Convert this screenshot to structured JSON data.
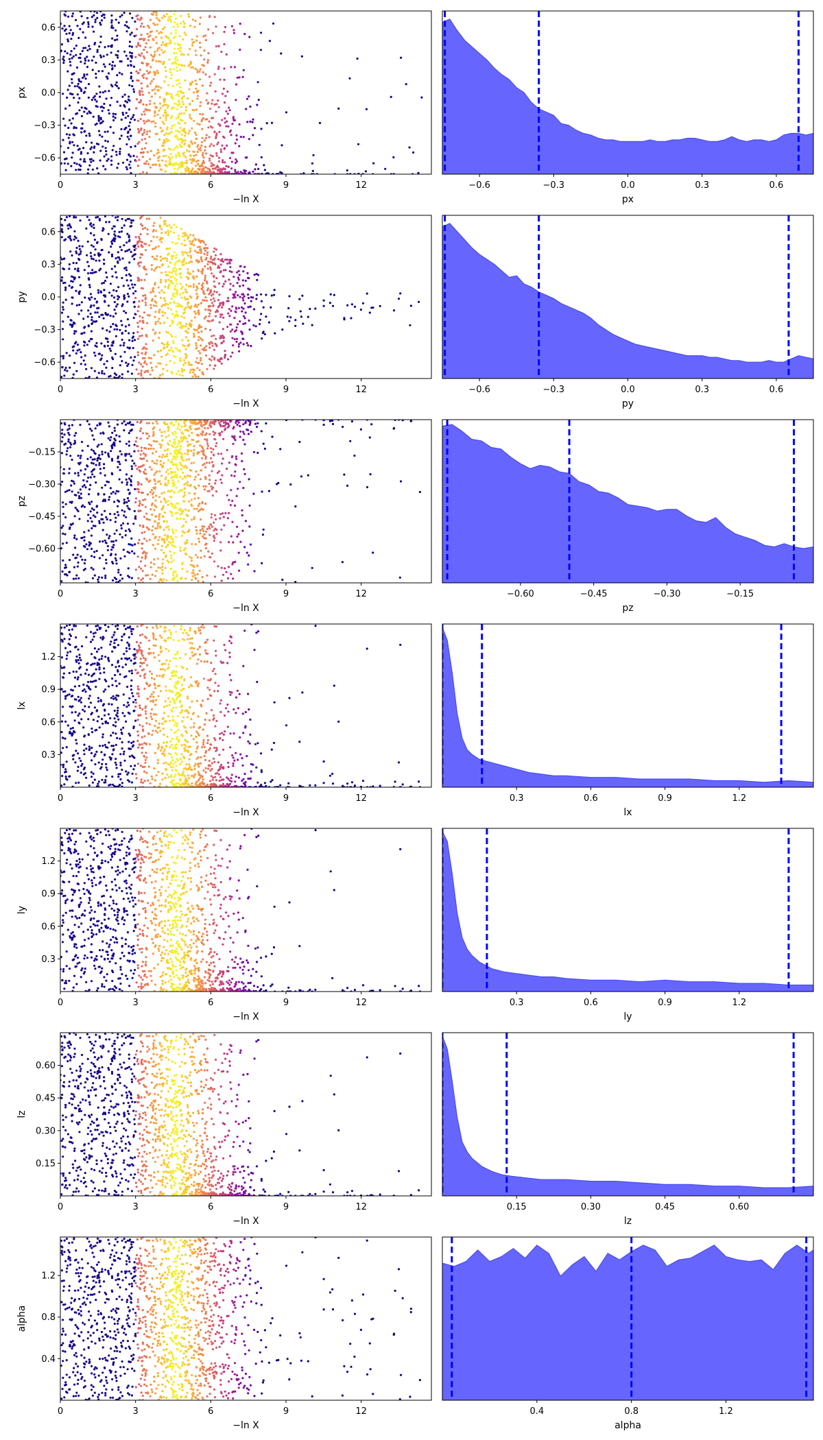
{
  "chart_data": [
    {
      "row": 0,
      "type": "scatter",
      "xlabel": "−ln X",
      "ylabel": "px",
      "xlim": [
        0,
        14.8
      ],
      "ylim": [
        -0.75,
        0.75
      ],
      "xticks": [
        "0",
        "3",
        "6",
        "9",
        "12"
      ],
      "yticks": [
        "0.6",
        "0.3",
        "0.0",
        "−0.3",
        "−0.6"
      ],
      "pattern": "low-tail"
    },
    {
      "row": 0,
      "type": "area",
      "xlabel": "px",
      "xlim": [
        -0.75,
        0.75
      ],
      "xticks": [
        "−0.6",
        "−0.3",
        "0.0",
        "0.3",
        "0.6"
      ],
      "x": [
        -0.75,
        -0.72,
        -0.69,
        -0.66,
        -0.63,
        -0.6,
        -0.57,
        -0.54,
        -0.51,
        -0.48,
        -0.45,
        -0.42,
        -0.39,
        -0.36,
        -0.33,
        -0.3,
        -0.27,
        -0.24,
        -0.21,
        -0.18,
        -0.15,
        -0.12,
        -0.09,
        -0.06,
        -0.03,
        0.0,
        0.03,
        0.06,
        0.09,
        0.12,
        0.15,
        0.18,
        0.21,
        0.24,
        0.27,
        0.3,
        0.33,
        0.36,
        0.39,
        0.42,
        0.45,
        0.48,
        0.51,
        0.54,
        0.57,
        0.6,
        0.63,
        0.66,
        0.69,
        0.72,
        0.75
      ],
      "density": [
        0.93,
        0.95,
        0.88,
        0.82,
        0.78,
        0.74,
        0.7,
        0.65,
        0.61,
        0.58,
        0.53,
        0.5,
        0.44,
        0.4,
        0.38,
        0.36,
        0.31,
        0.3,
        0.27,
        0.25,
        0.24,
        0.22,
        0.21,
        0.21,
        0.2,
        0.2,
        0.2,
        0.2,
        0.21,
        0.2,
        0.2,
        0.21,
        0.21,
        0.22,
        0.22,
        0.21,
        0.2,
        0.2,
        0.21,
        0.23,
        0.21,
        0.2,
        0.21,
        0.21,
        0.2,
        0.21,
        0.24,
        0.25,
        0.25,
        0.24,
        0.25
      ],
      "vlines": [
        -0.74,
        -0.36,
        0.69
      ]
    },
    {
      "row": 1,
      "type": "scatter",
      "xlabel": "−ln X",
      "ylabel": "py",
      "xlim": [
        0,
        14.8
      ],
      "ylim": [
        -0.75,
        0.75
      ],
      "xticks": [
        "0",
        "3",
        "6",
        "9",
        "12"
      ],
      "yticks": [
        "0.6",
        "0.3",
        "0.0",
        "−0.3",
        "−0.6"
      ],
      "pattern": "mid-tail"
    },
    {
      "row": 1,
      "type": "area",
      "xlabel": "py",
      "xlim": [
        -0.75,
        0.75
      ],
      "xticks": [
        "−0.6",
        "−0.3",
        "0.0",
        "0.3",
        "0.6"
      ],
      "x": [
        -0.75,
        -0.72,
        -0.69,
        -0.66,
        -0.63,
        -0.6,
        -0.57,
        -0.54,
        -0.51,
        -0.48,
        -0.45,
        -0.42,
        -0.39,
        -0.36,
        -0.33,
        -0.3,
        -0.27,
        -0.24,
        -0.21,
        -0.18,
        -0.15,
        -0.12,
        -0.09,
        -0.06,
        -0.03,
        0.0,
        0.03,
        0.06,
        0.09,
        0.12,
        0.15,
        0.18,
        0.21,
        0.24,
        0.27,
        0.3,
        0.33,
        0.36,
        0.39,
        0.42,
        0.45,
        0.48,
        0.51,
        0.54,
        0.57,
        0.6,
        0.63,
        0.66,
        0.69,
        0.72,
        0.75
      ],
      "density": [
        0.93,
        0.95,
        0.9,
        0.85,
        0.8,
        0.76,
        0.73,
        0.7,
        0.66,
        0.62,
        0.63,
        0.58,
        0.56,
        0.53,
        0.51,
        0.49,
        0.46,
        0.44,
        0.42,
        0.4,
        0.37,
        0.33,
        0.3,
        0.27,
        0.25,
        0.23,
        0.21,
        0.2,
        0.19,
        0.18,
        0.17,
        0.16,
        0.15,
        0.14,
        0.14,
        0.14,
        0.13,
        0.13,
        0.12,
        0.11,
        0.11,
        0.1,
        0.1,
        0.1,
        0.11,
        0.1,
        0.1,
        0.12,
        0.14,
        0.13,
        0.12
      ],
      "vlines": [
        -0.74,
        -0.36,
        0.65
      ]
    },
    {
      "row": 2,
      "type": "scatter",
      "xlabel": "−ln X",
      "ylabel": "pz",
      "xlim": [
        0,
        14.8
      ],
      "ylim": [
        -0.76,
        0.0
      ],
      "xticks": [
        "0",
        "3",
        "6",
        "9",
        "12"
      ],
      "yticks": [
        "−0.15",
        "−0.30",
        "−0.45",
        "−0.60"
      ],
      "pattern": "high-tail"
    },
    {
      "row": 2,
      "type": "area",
      "xlabel": "pz",
      "xlim": [
        -0.76,
        0.0
      ],
      "xticks": [
        "−0.60",
        "−0.45",
        "−0.30",
        "−0.15"
      ],
      "x": [
        -0.76,
        -0.74,
        -0.72,
        -0.7,
        -0.68,
        -0.66,
        -0.64,
        -0.62,
        -0.6,
        -0.58,
        -0.56,
        -0.54,
        -0.52,
        -0.5,
        -0.48,
        -0.46,
        -0.44,
        -0.42,
        -0.4,
        -0.38,
        -0.36,
        -0.34,
        -0.32,
        -0.3,
        -0.28,
        -0.26,
        -0.24,
        -0.22,
        -0.2,
        -0.18,
        -0.16,
        -0.14,
        -0.12,
        -0.1,
        -0.08,
        -0.06,
        -0.04,
        -0.02,
        0.0
      ],
      "density": [
        0.96,
        0.97,
        0.93,
        0.88,
        0.87,
        0.83,
        0.82,
        0.77,
        0.73,
        0.7,
        0.72,
        0.71,
        0.68,
        0.67,
        0.62,
        0.6,
        0.56,
        0.55,
        0.52,
        0.48,
        0.47,
        0.46,
        0.44,
        0.45,
        0.45,
        0.41,
        0.38,
        0.37,
        0.4,
        0.34,
        0.3,
        0.28,
        0.26,
        0.23,
        0.22,
        0.24,
        0.22,
        0.21,
        0.22
      ],
      "vlines": [
        -0.75,
        -0.5,
        -0.04
      ]
    },
    {
      "row": 3,
      "type": "scatter",
      "xlabel": "−ln X",
      "ylabel": "lx",
      "xlim": [
        0,
        14.8
      ],
      "ylim": [
        0.0,
        1.5
      ],
      "xticks": [
        "0",
        "3",
        "6",
        "9",
        "12"
      ],
      "yticks": [
        "1.2",
        "0.9",
        "0.6",
        "0.3"
      ],
      "pattern": "low-tail"
    },
    {
      "row": 3,
      "type": "area",
      "xlabel": "lx",
      "xlim": [
        0.0,
        1.5
      ],
      "xticks": [
        "0.3",
        "0.6",
        "0.9",
        "1.2"
      ],
      "x": [
        0.0,
        0.02,
        0.04,
        0.06,
        0.08,
        0.1,
        0.12,
        0.15,
        0.2,
        0.25,
        0.3,
        0.35,
        0.4,
        0.45,
        0.5,
        0.6,
        0.7,
        0.8,
        0.9,
        1.0,
        1.1,
        1.2,
        1.3,
        1.4,
        1.5
      ],
      "density": [
        0.98,
        0.9,
        0.7,
        0.45,
        0.3,
        0.23,
        0.2,
        0.17,
        0.15,
        0.13,
        0.11,
        0.09,
        0.08,
        0.07,
        0.07,
        0.06,
        0.06,
        0.05,
        0.05,
        0.05,
        0.04,
        0.04,
        0.03,
        0.04,
        0.03
      ],
      "vlines": [
        0.0,
        0.16,
        1.37
      ]
    },
    {
      "row": 4,
      "type": "scatter",
      "xlabel": "−ln X",
      "ylabel": "ly",
      "xlim": [
        0,
        14.8
      ],
      "ylim": [
        0.0,
        1.5
      ],
      "xticks": [
        "0",
        "3",
        "6",
        "9",
        "12"
      ],
      "yticks": [
        "1.2",
        "0.9",
        "0.6",
        "0.3"
      ],
      "pattern": "low-tail"
    },
    {
      "row": 4,
      "type": "area",
      "xlabel": "ly",
      "xlim": [
        0.0,
        1.5
      ],
      "xticks": [
        "0.3",
        "0.6",
        "0.9",
        "1.2"
      ],
      "x": [
        0.0,
        0.02,
        0.04,
        0.06,
        0.08,
        0.1,
        0.12,
        0.15,
        0.2,
        0.25,
        0.3,
        0.35,
        0.4,
        0.45,
        0.5,
        0.6,
        0.7,
        0.8,
        0.9,
        1.0,
        1.1,
        1.2,
        1.3,
        1.4,
        1.5
      ],
      "density": [
        0.98,
        0.92,
        0.72,
        0.48,
        0.33,
        0.26,
        0.22,
        0.18,
        0.14,
        0.12,
        0.11,
        0.1,
        0.09,
        0.09,
        0.08,
        0.07,
        0.07,
        0.06,
        0.07,
        0.06,
        0.06,
        0.05,
        0.05,
        0.04,
        0.04
      ],
      "vlines": [
        0.0,
        0.18,
        1.4
      ]
    },
    {
      "row": 5,
      "type": "scatter",
      "xlabel": "−ln X",
      "ylabel": "lz",
      "xlim": [
        0,
        14.8
      ],
      "ylim": [
        0.0,
        0.75
      ],
      "xticks": [
        "0",
        "3",
        "6",
        "9",
        "12"
      ],
      "yticks": [
        "0.60",
        "0.45",
        "0.30",
        "0.15"
      ],
      "pattern": "low-tail"
    },
    {
      "row": 5,
      "type": "area",
      "xlabel": "lz",
      "xlim": [
        0.0,
        0.75
      ],
      "xticks": [
        "0.15",
        "0.30",
        "0.45",
        "0.60"
      ],
      "x": [
        0.0,
        0.01,
        0.02,
        0.03,
        0.04,
        0.05,
        0.06,
        0.08,
        0.1,
        0.12,
        0.14,
        0.17,
        0.2,
        0.25,
        0.3,
        0.35,
        0.4,
        0.45,
        0.5,
        0.55,
        0.6,
        0.65,
        0.7,
        0.75
      ],
      "density": [
        0.98,
        0.9,
        0.7,
        0.48,
        0.33,
        0.27,
        0.23,
        0.18,
        0.15,
        0.13,
        0.12,
        0.11,
        0.1,
        0.1,
        0.09,
        0.09,
        0.08,
        0.07,
        0.07,
        0.06,
        0.06,
        0.05,
        0.05,
        0.06
      ],
      "vlines": [
        0.0,
        0.13,
        0.71
      ]
    },
    {
      "row": 6,
      "type": "scatter",
      "xlabel": "−ln X",
      "ylabel": "alpha",
      "xlim": [
        0,
        14.8
      ],
      "ylim": [
        0.0,
        1.57
      ],
      "xticks": [
        "0",
        "3",
        "6",
        "9",
        "12"
      ],
      "yticks": [
        "1.2",
        "0.8",
        "0.4"
      ],
      "pattern": "uniform"
    },
    {
      "row": 6,
      "type": "area",
      "xlabel": "alpha",
      "xlim": [
        0.0,
        1.57
      ],
      "xticks": [
        "0.4",
        "0.8",
        "1.2"
      ],
      "x": [
        0.0,
        0.05,
        0.1,
        0.15,
        0.2,
        0.25,
        0.3,
        0.35,
        0.4,
        0.45,
        0.5,
        0.55,
        0.6,
        0.65,
        0.7,
        0.75,
        0.8,
        0.85,
        0.9,
        0.95,
        1.0,
        1.05,
        1.1,
        1.15,
        1.2,
        1.25,
        1.3,
        1.35,
        1.4,
        1.45,
        1.5,
        1.55,
        1.57
      ],
      "density": [
        0.84,
        0.82,
        0.85,
        0.92,
        0.85,
        0.88,
        0.93,
        0.87,
        0.95,
        0.9,
        0.76,
        0.83,
        0.88,
        0.79,
        0.9,
        0.86,
        0.91,
        0.95,
        0.92,
        0.82,
        0.86,
        0.87,
        0.91,
        0.95,
        0.88,
        0.86,
        0.85,
        0.86,
        0.8,
        0.9,
        0.95,
        0.9,
        0.92
      ],
      "vlines": [
        0.04,
        0.8,
        1.54
      ]
    }
  ]
}
